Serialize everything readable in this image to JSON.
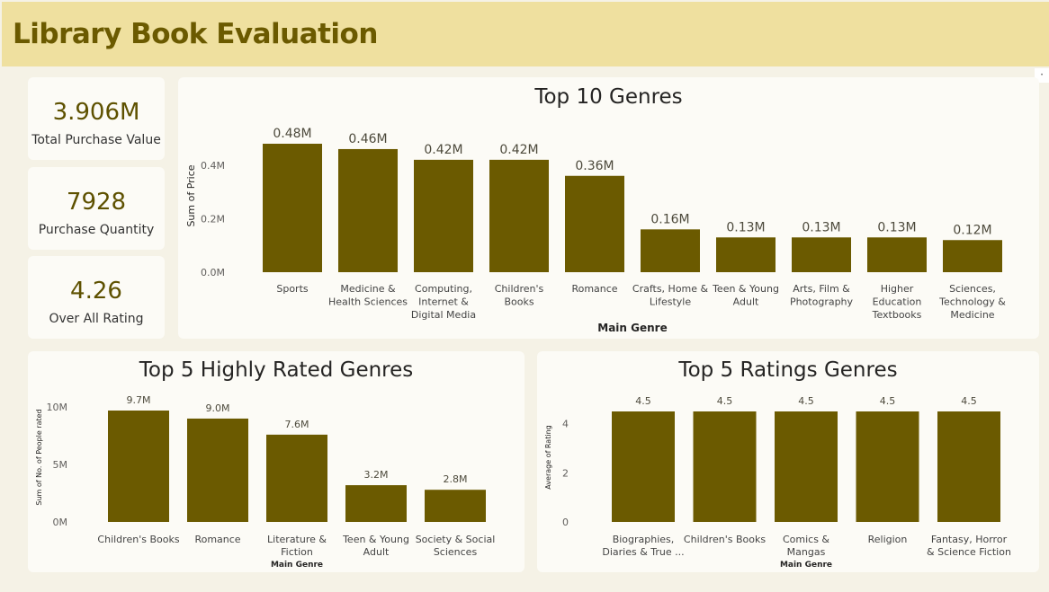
{
  "header": {
    "title": "Library Book Evaluation"
  },
  "corner_menu": "·",
  "kpis": [
    {
      "value": "3.906M",
      "label": "Total Purchase Value"
    },
    {
      "value": "7928",
      "label": "Purchase Quantity"
    },
    {
      "value": "4.26",
      "label": "Over All Rating"
    }
  ],
  "colors": {
    "bar": "#6b5a00",
    "header_bg": "#efe09f",
    "title": "#6b5a00"
  },
  "chart_data": [
    {
      "type": "bar",
      "title": "Top 10 Genres",
      "xlabel": "Main Genre",
      "ylabel": "Sum of Price",
      "categories": [
        [
          "Sports"
        ],
        [
          "Medicine &",
          "Health Sciences"
        ],
        [
          "Computing,",
          "Internet &",
          "Digital Media"
        ],
        [
          "Children's",
          "Books"
        ],
        [
          "Romance"
        ],
        [
          "Crafts, Home &",
          "Lifestyle"
        ],
        [
          "Teen & Young",
          "Adult"
        ],
        [
          "Arts, Film &",
          "Photography"
        ],
        [
          "Higher",
          "Education",
          "Textbooks"
        ],
        [
          "Sciences,",
          "Technology &",
          "Medicine"
        ]
      ],
      "values": [
        0.48,
        0.46,
        0.42,
        0.42,
        0.36,
        0.16,
        0.13,
        0.13,
        0.13,
        0.12
      ],
      "data_labels": [
        "0.48M",
        "0.46M",
        "0.42M",
        "0.42M",
        "0.36M",
        "0.16M",
        "0.13M",
        "0.13M",
        "0.13M",
        "0.12M"
      ],
      "yticks": [
        "0.0M",
        "0.2M",
        "0.4M"
      ],
      "ytick_values": [
        0,
        0.2,
        0.4
      ],
      "ylim": [
        0,
        0.48
      ],
      "grid": false,
      "legend": "none"
    },
    {
      "type": "bar",
      "title": "Top 5 Highly Rated Genres",
      "xlabel": "Main Genre",
      "ylabel": "Sum of No. of People rated",
      "categories": [
        [
          "Children's Books"
        ],
        [
          "Romance"
        ],
        [
          "Literature &",
          "Fiction"
        ],
        [
          "Teen & Young",
          "Adult"
        ],
        [
          "Society & Social",
          "Sciences"
        ]
      ],
      "values": [
        9.7,
        9.0,
        7.6,
        3.2,
        2.8
      ],
      "data_labels": [
        "9.7M",
        "9.0M",
        "7.6M",
        "3.2M",
        "2.8M"
      ],
      "yticks": [
        "0M",
        "5M",
        "10M"
      ],
      "ytick_values": [
        0,
        5,
        10
      ],
      "ylim": [
        0,
        9.7
      ],
      "grid": false,
      "legend": "none"
    },
    {
      "type": "bar",
      "title": "Top 5 Ratings Genres",
      "xlabel": "Main Genre",
      "ylabel": "Average of Rating",
      "categories": [
        [
          "Biographies,",
          "Diaries & True ..."
        ],
        [
          "Children's Books"
        ],
        [
          "Comics &",
          "Mangas"
        ],
        [
          "Religion"
        ],
        [
          "Fantasy, Horror",
          "& Science Fiction"
        ]
      ],
      "values": [
        4.5,
        4.5,
        4.5,
        4.5,
        4.5
      ],
      "data_labels": [
        "4.5",
        "4.5",
        "4.5",
        "4.5",
        "4.5"
      ],
      "yticks": [
        "0",
        "2",
        "4"
      ],
      "ytick_values": [
        0,
        2,
        4
      ],
      "ylim": [
        0,
        4.5
      ],
      "grid": false,
      "legend": "none"
    }
  ]
}
